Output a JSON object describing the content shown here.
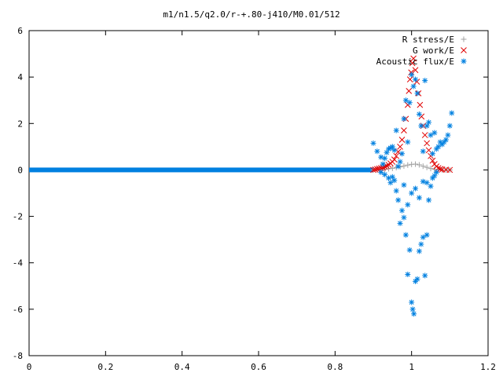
{
  "chart_data": {
    "type": "scatter",
    "title": "m1/n1.5/q2.0/r-+.80-j410/M0.01/512",
    "xlabel": "",
    "ylabel": "",
    "xlim": [
      0,
      1.2
    ],
    "ylim": [
      -8,
      6
    ],
    "x_ticks": [
      0,
      0.2,
      0.4,
      0.6,
      0.8,
      1,
      1.2
    ],
    "x_tick_labels": [
      "0",
      "0.2",
      "0.4",
      "0.6",
      "0.8",
      "1",
      "1.2"
    ],
    "y_ticks": [
      -8,
      -6,
      -4,
      -2,
      0,
      2,
      4,
      6
    ],
    "y_tick_labels": [
      "-8",
      "-6",
      "-4",
      "-2",
      "0",
      "2",
      "4",
      "6"
    ],
    "grid": false,
    "legend_position": "top-right",
    "baseline": {
      "x_start": 0,
      "x_end": 0.9,
      "y": 0,
      "color": "#0080e0"
    },
    "series": [
      {
        "name": "R stress/E",
        "marker": "plus",
        "color": "#a0a0a0",
        "points": [
          [
            0.9,
            0
          ],
          [
            0.91,
            0.01
          ],
          [
            0.92,
            0.02
          ],
          [
            0.93,
            0.03
          ],
          [
            0.94,
            0.05
          ],
          [
            0.95,
            0.07
          ],
          [
            0.96,
            0.1
          ],
          [
            0.97,
            0.13
          ],
          [
            0.98,
            0.17
          ],
          [
            0.99,
            0.21
          ],
          [
            1.0,
            0.24
          ],
          [
            1.01,
            0.25
          ],
          [
            1.02,
            0.22
          ],
          [
            1.03,
            0.16
          ],
          [
            1.04,
            0.11
          ],
          [
            1.05,
            0.06
          ],
          [
            1.06,
            0.03
          ],
          [
            1.07,
            0.01
          ],
          [
            1.08,
            0
          ],
          [
            1.09,
            0
          ],
          [
            1.1,
            0
          ]
        ]
      },
      {
        "name": "G work/E",
        "marker": "cross",
        "color": "#e00000",
        "points": [
          [
            0.9,
            0.0
          ],
          [
            0.905,
            0.02
          ],
          [
            0.91,
            0.04
          ],
          [
            0.915,
            0.06
          ],
          [
            0.92,
            0.08
          ],
          [
            0.925,
            0.1
          ],
          [
            0.93,
            0.14
          ],
          [
            0.935,
            0.17
          ],
          [
            0.94,
            0.22
          ],
          [
            0.945,
            0.28
          ],
          [
            0.95,
            0.35
          ],
          [
            0.955,
            0.45
          ],
          [
            0.96,
            0.6
          ],
          [
            0.965,
            0.78
          ],
          [
            0.97,
            1.0
          ],
          [
            0.975,
            1.3
          ],
          [
            0.98,
            1.7
          ],
          [
            0.985,
            2.2
          ],
          [
            0.99,
            2.8
          ],
          [
            0.993,
            3.4
          ],
          [
            0.996,
            3.9
          ],
          [
            0.999,
            4.2
          ],
          [
            1.002,
            4.6
          ],
          [
            1.005,
            4.8
          ],
          [
            1.01,
            4.3
          ],
          [
            1.014,
            3.8
          ],
          [
            1.018,
            3.3
          ],
          [
            1.022,
            2.8
          ],
          [
            1.026,
            2.3
          ],
          [
            1.03,
            1.9
          ],
          [
            1.035,
            1.5
          ],
          [
            1.04,
            1.15
          ],
          [
            1.045,
            0.85
          ],
          [
            1.05,
            0.6
          ],
          [
            1.055,
            0.4
          ],
          [
            1.06,
            0.25
          ],
          [
            1.065,
            0.15
          ],
          [
            1.07,
            0.08
          ],
          [
            1.075,
            0.04
          ],
          [
            1.08,
            0.02
          ],
          [
            1.09,
            0.01
          ],
          [
            1.1,
            0.0
          ]
        ]
      },
      {
        "name": "Acoustic flux/E",
        "marker": "asterisk",
        "color": "#0080e0",
        "points": [
          [
            0.9,
            1.15
          ],
          [
            0.91,
            0.8
          ],
          [
            0.92,
            0.55
          ],
          [
            0.925,
            0.25
          ],
          [
            0.93,
            0.5
          ],
          [
            0.935,
            0.75
          ],
          [
            0.94,
            0.9
          ],
          [
            0.945,
            0.95
          ],
          [
            0.95,
            1.0
          ],
          [
            0.955,
            0.85
          ],
          [
            0.96,
            1.7
          ],
          [
            0.965,
            0.15
          ],
          [
            0.97,
            0.35
          ],
          [
            0.975,
            0.7
          ],
          [
            0.98,
            2.2
          ],
          [
            0.985,
            3.0
          ],
          [
            0.99,
            1.2
          ],
          [
            0.995,
            2.9
          ],
          [
            1.0,
            4.1
          ],
          [
            1.005,
            3.6
          ],
          [
            1.01,
            3.9
          ],
          [
            1.015,
            3.3
          ],
          [
            1.02,
            2.4
          ],
          [
            1.025,
            1.9
          ],
          [
            1.03,
            0.8
          ],
          [
            1.035,
            3.85
          ],
          [
            1.04,
            1.9
          ],
          [
            1.045,
            2.05
          ],
          [
            1.05,
            1.5
          ],
          [
            1.055,
            0.7
          ],
          [
            1.06,
            1.6
          ],
          [
            1.065,
            0.9
          ],
          [
            1.07,
            1.0
          ],
          [
            1.075,
            1.2
          ],
          [
            1.08,
            1.1
          ],
          [
            1.085,
            1.2
          ],
          [
            1.09,
            1.3
          ],
          [
            1.095,
            1.5
          ],
          [
            1.1,
            1.9
          ],
          [
            1.105,
            2.45
          ],
          [
            0.92,
            -0.1
          ],
          [
            0.93,
            -0.2
          ],
          [
            0.94,
            -0.35
          ],
          [
            0.945,
            -0.55
          ],
          [
            0.95,
            -0.3
          ],
          [
            0.955,
            -0.45
          ],
          [
            0.96,
            -0.9
          ],
          [
            0.965,
            -1.3
          ],
          [
            0.97,
            -2.3
          ],
          [
            0.975,
            -1.75
          ],
          [
            0.98,
            -2.05
          ],
          [
            0.985,
            -2.8
          ],
          [
            0.99,
            -4.5
          ],
          [
            0.995,
            -3.45
          ],
          [
            1.0,
            -5.7
          ],
          [
            1.003,
            -6.0
          ],
          [
            1.006,
            -6.2
          ],
          [
            1.01,
            -4.8
          ],
          [
            1.015,
            -4.7
          ],
          [
            1.02,
            -3.5
          ],
          [
            1.025,
            -3.2
          ],
          [
            1.03,
            -2.9
          ],
          [
            1.035,
            -4.55
          ],
          [
            1.04,
            -2.8
          ],
          [
            1.045,
            -1.3
          ],
          [
            1.05,
            -0.7
          ],
          [
            1.055,
            -0.35
          ],
          [
            1.06,
            -0.25
          ],
          [
            1.065,
            -0.1
          ],
          [
            0.98,
            -0.65
          ],
          [
            0.99,
            -1.5
          ],
          [
            1.0,
            -1.0
          ],
          [
            1.01,
            -0.8
          ],
          [
            1.02,
            -1.2
          ],
          [
            1.03,
            -0.5
          ],
          [
            1.04,
            -0.55
          ]
        ]
      }
    ]
  }
}
